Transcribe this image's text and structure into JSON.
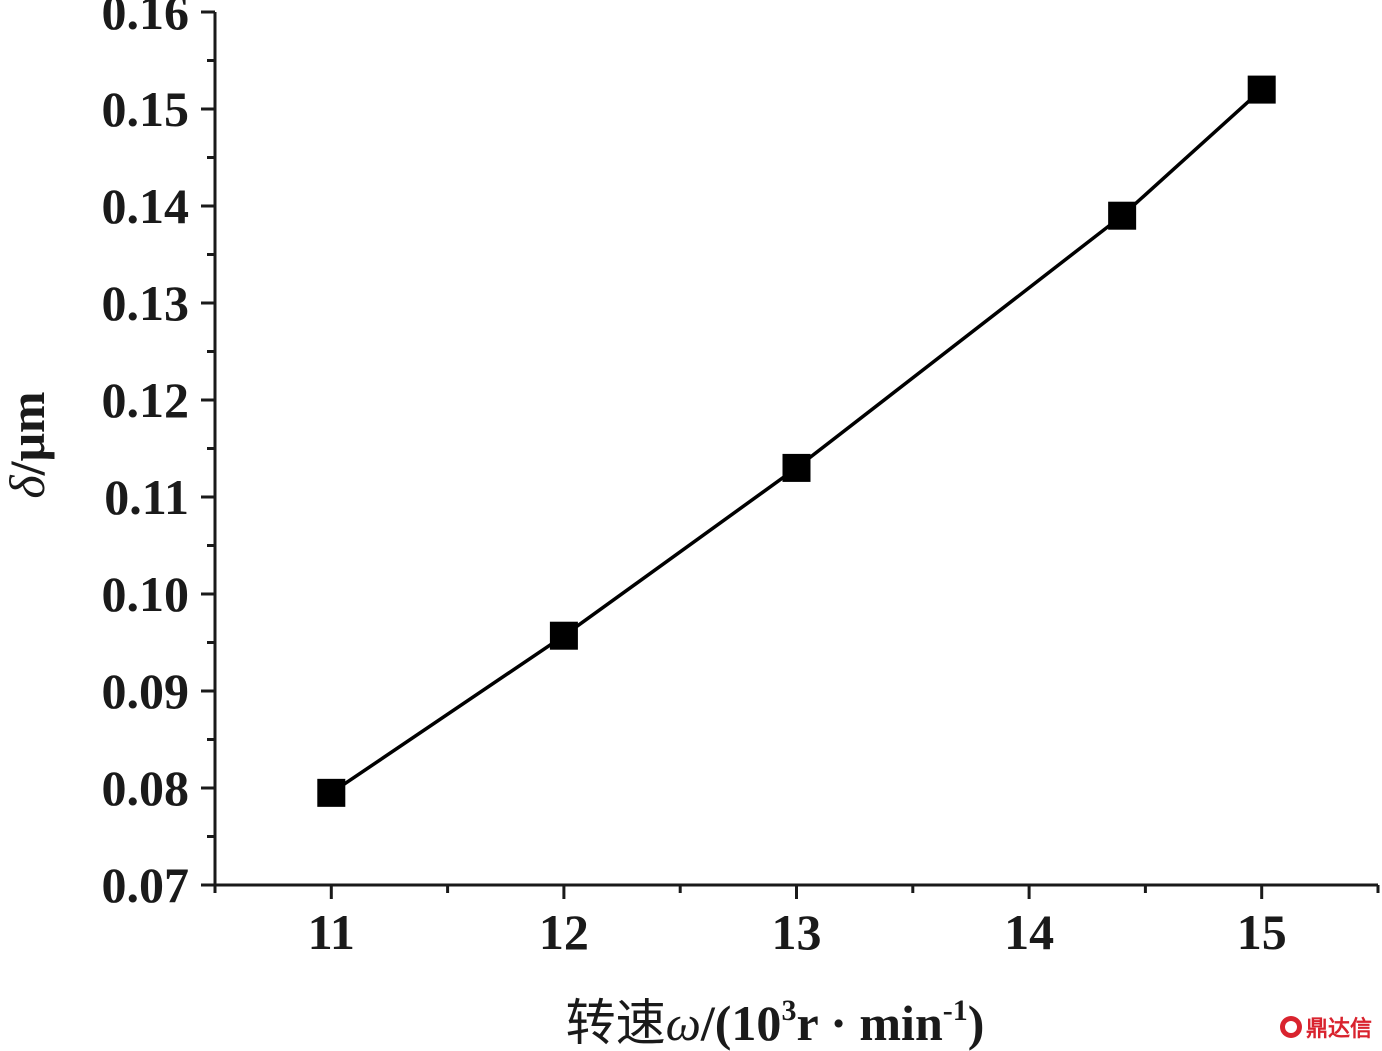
{
  "chart_data": {
    "type": "line",
    "x": [
      11,
      12,
      13,
      14.4,
      15
    ],
    "series": [
      {
        "values": [
          0.0795,
          0.0957,
          0.113,
          0.139,
          0.152
        ],
        "marker": "square",
        "color": "#000000"
      }
    ],
    "xlim": [
      10.5,
      15.5
    ],
    "ylim": [
      0.07,
      0.16
    ],
    "xticks": [
      "11",
      "12",
      "13",
      "14",
      "15"
    ],
    "yticks": [
      "0.07",
      "0.08",
      "0.09",
      "0.10",
      "0.11",
      "0.12",
      "0.13",
      "0.14",
      "0.15",
      "0.16"
    ],
    "xlabel": {
      "cjk": "转速",
      "symbol": "ω",
      "prefix": "/(10",
      "sup1": "3",
      "mid": "r · min",
      "sup2": "-1",
      "suffix": ")"
    },
    "ylabel": {
      "symbol": "δ",
      "unit": "/μm"
    },
    "grid": false,
    "legend": "none"
  },
  "watermark": {
    "text": "鼎达信"
  }
}
